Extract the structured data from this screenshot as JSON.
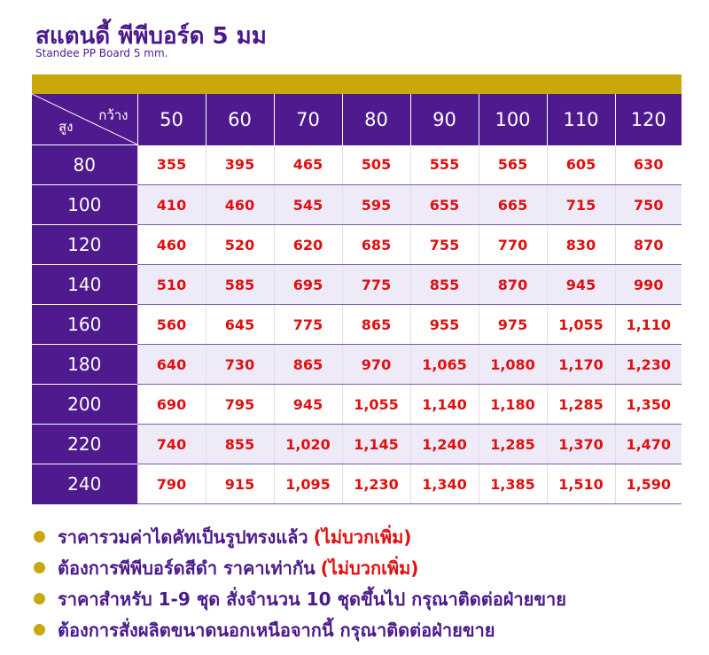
{
  "title": "สแตนดี้ พีพีบอร์ด 5 มม",
  "subtitle": "Standee PP Board 5 mm.",
  "colors": {
    "accent_purple": "#4e1a8e",
    "gold": "#c9a80a",
    "price_red": "#e01010",
    "alt_row": "#efeaf8"
  },
  "table": {
    "corner_width_label": "กว้าง",
    "corner_height_label": "สูง",
    "widths": [
      "50",
      "60",
      "70",
      "80",
      "90",
      "100",
      "110",
      "120"
    ],
    "rows": [
      {
        "height": "80",
        "prices": [
          "355",
          "395",
          "465",
          "505",
          "555",
          "565",
          "605",
          "630"
        ]
      },
      {
        "height": "100",
        "prices": [
          "410",
          "460",
          "545",
          "595",
          "655",
          "665",
          "715",
          "750"
        ]
      },
      {
        "height": "120",
        "prices": [
          "460",
          "520",
          "620",
          "685",
          "755",
          "770",
          "830",
          "870"
        ]
      },
      {
        "height": "140",
        "prices": [
          "510",
          "585",
          "695",
          "775",
          "855",
          "870",
          "945",
          "990"
        ]
      },
      {
        "height": "160",
        "prices": [
          "560",
          "645",
          "775",
          "865",
          "955",
          "975",
          "1,055",
          "1,110"
        ]
      },
      {
        "height": "180",
        "prices": [
          "640",
          "730",
          "865",
          "970",
          "1,065",
          "1,080",
          "1,170",
          "1,230"
        ]
      },
      {
        "height": "200",
        "prices": [
          "690",
          "795",
          "945",
          "1,055",
          "1,140",
          "1,180",
          "1,285",
          "1,350"
        ]
      },
      {
        "height": "220",
        "prices": [
          "740",
          "855",
          "1,020",
          "1,145",
          "1,240",
          "1,285",
          "1,370",
          "1,470"
        ]
      },
      {
        "height": "240",
        "prices": [
          "790",
          "915",
          "1,095",
          "1,230",
          "1,340",
          "1,385",
          "1,510",
          "1,590"
        ]
      }
    ]
  },
  "notes": [
    {
      "text": "ราคารวมค่าไดคัทเป็นรูปทรงแล้ว",
      "extra": "(ไม่บวกเพิ่ม)"
    },
    {
      "text": "ต้องการพีพีบอร์ดสีดำ ราคาเท่ากัน",
      "extra": "(ไม่บวกเพิ่ม)"
    },
    {
      "text": "ราคาสำหรับ 1-9 ชุด สั่งจำนวน 10 ชุดขึ้นไป กรุณาติดต่อฝ่ายขาย",
      "extra": ""
    },
    {
      "text": "ต้องการสั่งผลิตขนาดนอกเหนือจากนี้  กรุณาติดต่อฝ่ายขาย",
      "extra": ""
    }
  ]
}
